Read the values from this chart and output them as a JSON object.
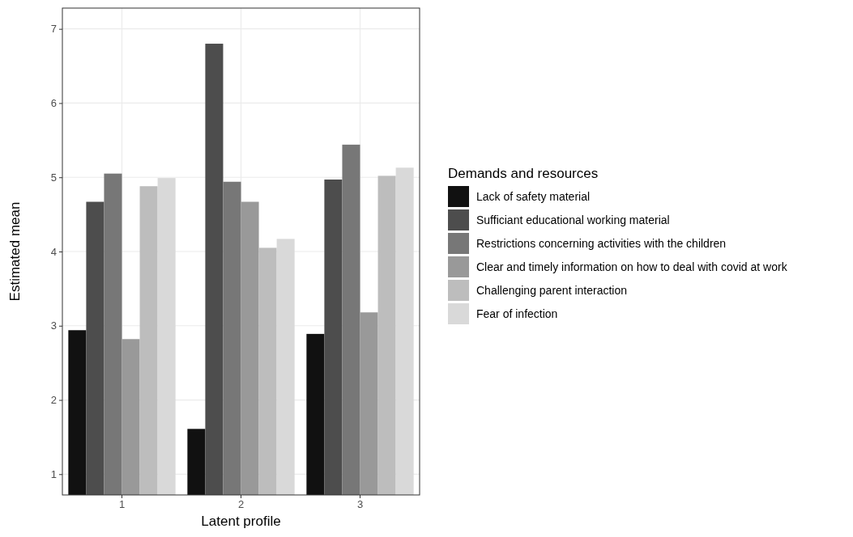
{
  "chart_data": {
    "type": "bar",
    "xlabel": "Latent profile",
    "ylabel": "Estimated mean",
    "legend_title": "Demands and resources",
    "categories": [
      "1",
      "2",
      "3"
    ],
    "series": [
      {
        "name": "Lack of safety material",
        "color": "#111111",
        "values": [
          2.94,
          1.61,
          2.89
        ]
      },
      {
        "name": "Sufficiant educational working material",
        "color": "#4d4d4d",
        "values": [
          4.67,
          6.8,
          4.97
        ]
      },
      {
        "name": "Restrictions concerning activities with the children",
        "color": "#777777",
        "values": [
          5.05,
          4.94,
          5.44
        ]
      },
      {
        "name": "Clear and timely information on how to deal with covid at work",
        "color": "#999999",
        "values": [
          2.82,
          4.67,
          3.18
        ]
      },
      {
        "name": "Challenging parent interaction",
        "color": "#bdbdbd",
        "values": [
          4.88,
          4.05,
          5.02
        ]
      },
      {
        "name": "Fear of infection",
        "color": "#d9d9d9",
        "values": [
          4.99,
          4.17,
          5.13
        ]
      }
    ],
    "ylim": [
      0.72,
      7.28
    ],
    "yticks": [
      1,
      2,
      3,
      4,
      5,
      6,
      7
    ],
    "grid": true,
    "legend": "right"
  }
}
